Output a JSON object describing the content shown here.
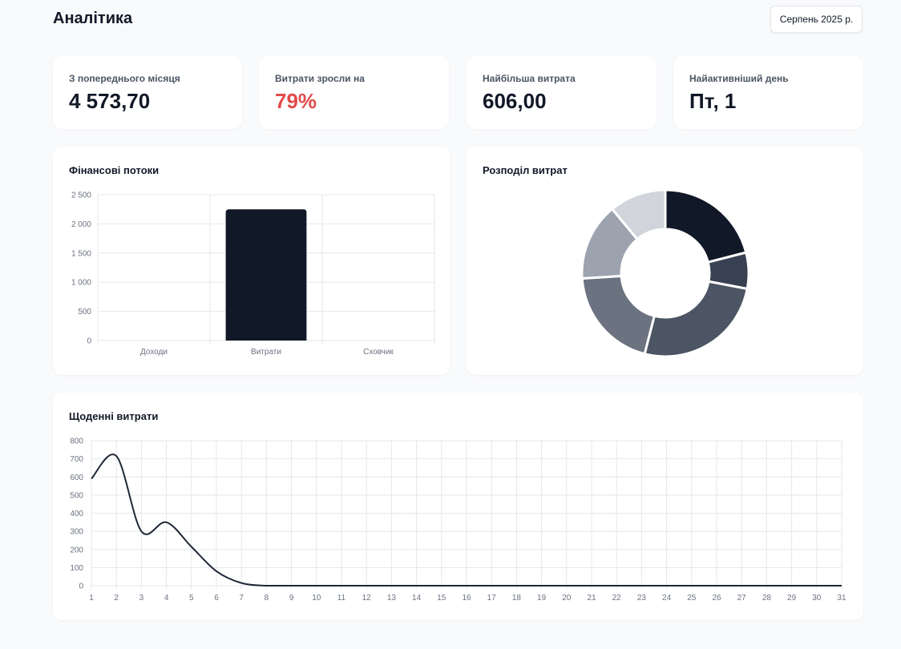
{
  "header": {
    "title": "Аналітика",
    "month_label": "Серпень 2025 р."
  },
  "stats": [
    {
      "label": "З попереднього місяця",
      "value": "4 573,70"
    },
    {
      "label": "Витрати зросли на",
      "value": "79%"
    },
    {
      "label": "Найбільша витрата",
      "value": "606,00"
    },
    {
      "label": "Найактивніший день",
      "value": "Пт, 1"
    }
  ],
  "colors": {
    "accent_red": "#e24b4b",
    "dark": "#111827"
  },
  "flows": {
    "title": "Фінансові потоки",
    "chart_data": {
      "type": "bar",
      "categories": [
        "Доходи",
        "Витрати",
        "Сховчик"
      ],
      "values": [
        0,
        2250,
        0
      ],
      "ylim": [
        0,
        2500
      ],
      "yticks": [
        0,
        500,
        1000,
        1500,
        2000,
        2500
      ],
      "ytick_labels": [
        "0",
        "500",
        "1 000",
        "1 500",
        "2 000",
        "2 500"
      ],
      "grid": true,
      "color": "#111827"
    }
  },
  "distribution": {
    "title": "Розподіл витрат",
    "chart_data": {
      "type": "pie",
      "values": [
        21,
        7,
        26,
        20,
        15,
        11
      ],
      "colors": [
        "#111827",
        "#374151",
        "#4b5563",
        "#6b7280",
        "#9ca3af",
        "#d1d5db"
      ]
    }
  },
  "daily": {
    "title": "Щоденні витрати",
    "chart_data": {
      "type": "line",
      "x": [
        1,
        2,
        3,
        4,
        5,
        6,
        7,
        8,
        9,
        10,
        11,
        12,
        13,
        14,
        15,
        16,
        17,
        18,
        19,
        20,
        21,
        22,
        23,
        24,
        25,
        26,
        27,
        28,
        29,
        30,
        31
      ],
      "values": [
        590,
        715,
        300,
        350,
        215,
        80,
        15,
        0,
        0,
        0,
        0,
        0,
        0,
        0,
        0,
        0,
        0,
        0,
        0,
        0,
        0,
        0,
        0,
        0,
        0,
        0,
        0,
        0,
        0,
        0,
        0
      ],
      "ylim": [
        0,
        800
      ],
      "yticks": [
        0,
        100,
        200,
        300,
        400,
        500,
        600,
        700,
        800
      ],
      "grid": true,
      "color": "#1f2937"
    }
  }
}
